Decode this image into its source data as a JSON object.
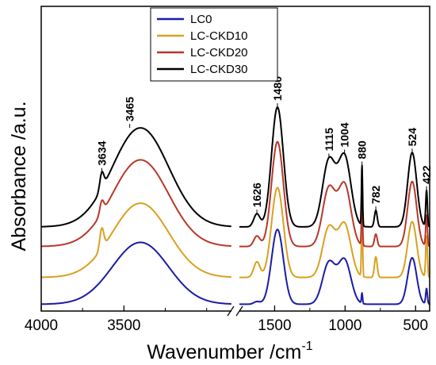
{
  "chart_data": {
    "type": "line",
    "xlabel": "Wavenumber /cm",
    "xlabel_sup": "-1",
    "ylabel": "Absorbance /a.u.",
    "x_axis": {
      "reversed": true,
      "broken": true,
      "segments": [
        {
          "range": [
            4000,
            2850
          ]
        },
        {
          "range": [
            1750,
            400
          ]
        }
      ],
      "tick_labels": [
        "4000",
        "3500",
        "1500",
        "1000",
        "500"
      ],
      "tick_values": [
        4000,
        3500,
        1500,
        1000,
        500
      ]
    },
    "y_axis": {
      "tick_labels": false
    },
    "legend": {
      "position": "top-left",
      "entries": [
        "LC0",
        "LC-CKD10",
        "LC-CKD20",
        "LC-CKD30"
      ]
    },
    "series": [
      {
        "name": "LC0",
        "color": "#1b1ba8",
        "offset": 0.0,
        "y_end": 0.07
      },
      {
        "name": "LC-CKD10",
        "color": "#d9a021",
        "offset": 0.5,
        "y_end": 0.09
      },
      {
        "name": "LC-CKD20",
        "color": "#b8372a",
        "offset": 1.1,
        "y_end": 0.09
      },
      {
        "name": "LC-CKD30",
        "color": "#000000",
        "offset": 1.5,
        "y_end": 0.07
      }
    ],
    "peak_labels": [
      "3634",
      "3465",
      "1626",
      "1480",
      "1115",
      "1004",
      "880",
      "782",
      "524",
      "422"
    ],
    "peaks": [
      {
        "label": "3634",
        "x": 3634
      },
      {
        "label": "3465",
        "x": 3465
      },
      {
        "label": "1626",
        "x": 1626
      },
      {
        "label": "1480",
        "x": 1480
      },
      {
        "label": "1115",
        "x": 1115
      },
      {
        "label": "1004",
        "x": 1004
      },
      {
        "label": "880",
        "x": 880
      },
      {
        "label": "782",
        "x": 782
      },
      {
        "label": "524",
        "x": 524
      },
      {
        "label": "422",
        "x": 422
      }
    ],
    "bands": [
      {
        "center": 3400,
        "width": 170,
        "base": 1.2,
        "scaled": true
      },
      {
        "center": 3634,
        "width": 12,
        "base": 0.0,
        "ckd": 0.4
      },
      {
        "center": 1626,
        "width": 22,
        "base": 0.05,
        "ckd": 0.25
      },
      {
        "center": 1480,
        "width": 42,
        "base": 1.45,
        "scaled": true
      },
      {
        "center": 1115,
        "width": 45,
        "base": 0.8,
        "scaled": true
      },
      {
        "center": 1004,
        "width": 45,
        "base": 0.85,
        "scaled": true
      },
      {
        "center": 880,
        "width": 4,
        "base": 0.2,
        "ckd": 1.2
      },
      {
        "center": 782,
        "width": 10,
        "base": 0.0,
        "ckd": 0.4
      },
      {
        "center": 524,
        "width": 32,
        "base": 0.9,
        "scaled": true
      },
      {
        "center": 422,
        "width": 6,
        "base": 0.3,
        "ckd": 0.5
      }
    ],
    "intensity_scale": [
      1.0,
      1.2,
      1.4,
      1.6
    ],
    "ckd_level": [
      0.0,
      1.0,
      0.6,
      0.8
    ]
  }
}
